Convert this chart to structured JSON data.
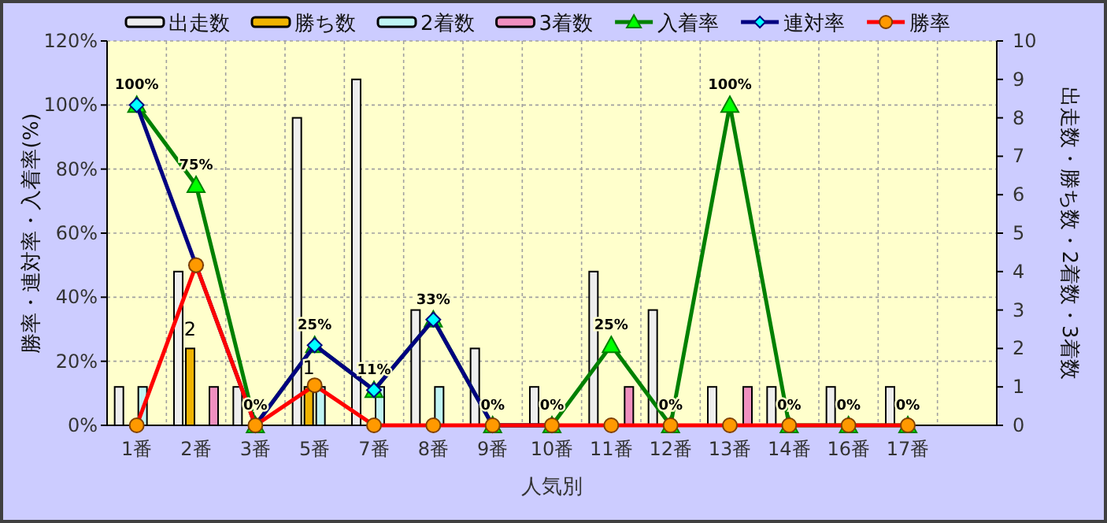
{
  "chart_data": {
    "type": "bar",
    "xlabel": "人気別",
    "ylabel": "勝率・連対率・入着率(%)",
    "y2label": "出走数・勝ち数・2着数・3着数",
    "categories": [
      "1番",
      "2番",
      "3番",
      "5番",
      "7番",
      "8番",
      "9番",
      "10番",
      "11番",
      "12番",
      "13番",
      "14番",
      "16番",
      "17番"
    ],
    "ylim": [
      0,
      120
    ],
    "yticks": [
      {
        "value": 0,
        "label": "0%"
      },
      {
        "value": 20,
        "label": "20%"
      },
      {
        "value": 40,
        "label": "40%"
      },
      {
        "value": 60,
        "label": "60%"
      },
      {
        "value": 80,
        "label": "80%"
      },
      {
        "value": 100,
        "label": "100%"
      },
      {
        "value": 120,
        "label": "120%"
      }
    ],
    "y2lim": [
      0,
      10
    ],
    "y2ticks": [
      0,
      1,
      2,
      3,
      4,
      5,
      6,
      7,
      8,
      9,
      10
    ],
    "grid": true,
    "legend": "top",
    "series": [
      {
        "name": "出走数",
        "axis": "y2",
        "color": "#eeeeee",
        "values": [
          1,
          4,
          1,
          8,
          9,
          3,
          2,
          1,
          4,
          3,
          1,
          1,
          1,
          1
        ]
      },
      {
        "name": "勝ち数",
        "axis": "y2",
        "color": "#f0b400",
        "values": [
          0,
          2,
          0,
          1,
          0,
          0,
          0,
          0,
          0,
          0,
          0,
          0,
          0,
          0
        ],
        "value_labels": [
          null,
          "2",
          null,
          "1",
          null,
          null,
          null,
          null,
          null,
          null,
          null,
          null,
          null,
          null
        ]
      },
      {
        "name": "2着数",
        "axis": "y2",
        "color": "#c0f4f4",
        "values": [
          1,
          0,
          0,
          1,
          1,
          1,
          0,
          0,
          0,
          0,
          0,
          0,
          0,
          0
        ]
      },
      {
        "name": "3着数",
        "axis": "y2",
        "color": "#f090c0",
        "values": [
          0,
          1,
          0,
          0,
          0,
          0,
          0,
          0,
          1,
          0,
          1,
          0,
          0,
          0
        ]
      },
      {
        "name": "入着率",
        "type": "line",
        "color": "#008000",
        "marker": "triangle",
        "values": [
          100,
          75,
          0,
          25,
          11,
          33,
          0,
          0,
          25,
          0,
          100,
          0,
          0,
          0
        ],
        "value_labels": [
          "100%",
          "75%",
          "0%",
          "25%",
          "11%",
          "33%",
          "0%",
          "0%",
          "25%",
          "0%",
          "100%",
          "0%",
          "0%",
          "0%"
        ]
      },
      {
        "name": "連対率",
        "type": "line",
        "color": "#000080",
        "marker": "diamond",
        "values": [
          100,
          50,
          0,
          25,
          11,
          33,
          0,
          0,
          null,
          null,
          null,
          null,
          null,
          null
        ]
      },
      {
        "name": "勝率",
        "type": "line",
        "color": "#ff0000",
        "marker": "circle",
        "values": [
          0,
          50,
          0,
          12.5,
          0,
          0,
          0,
          0,
          0,
          0,
          0,
          0,
          0,
          0
        ]
      }
    ]
  }
}
